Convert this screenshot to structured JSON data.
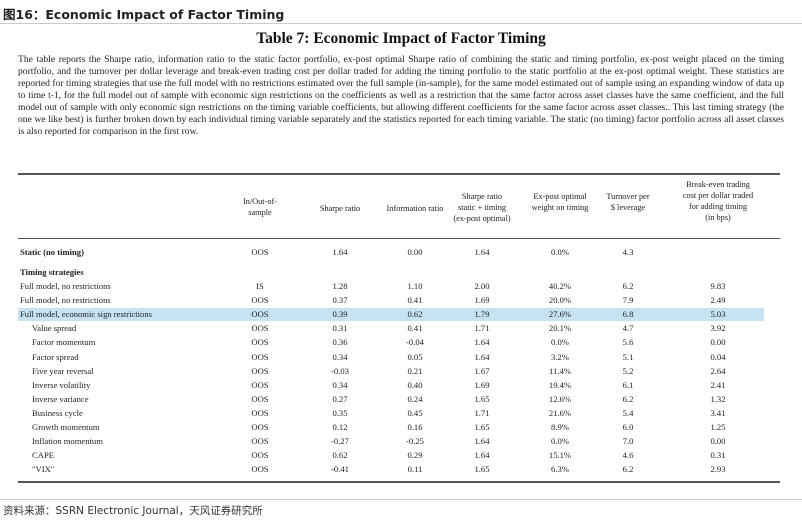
{
  "figure_label": "图16：Economic Impact of Factor Timing",
  "table_title": "Table 7:  Economic Impact of Factor Timing",
  "description": "The table reports the Sharpe ratio, information ratio to the static factor portfolio, ex-post optimal Sharpe ratio of combining the static and timing portfolio, ex-post weight placed on the timing portfolio, and the turnover per dollar leverage and break-even trading cost per dollar traded for adding the timing portfolio to the static portfolio at the ex-post optimal weight. These statistics are reported for timing strategies that use the full model with no restrictions estimated over the full sample (in-sample), for the same model estimated out of sample using an expanding window of data up to time t-1, for the full model out of sample with economic sign restrictions on the coefficients as well as a restriction that the same factor across asset classes have the same coefficient, and the full model out of sample with only economic sign restrictions on the timing variable coefficients, but allowing different coefficients for the same factor across asset classes..  This last timing strategy (the one we like best) is further broken down by each individual timing variable separately and the statistics reported for each timing variable. The static (no timing) factor portfolio across all asset classes is also reported for comparison in the first row.",
  "headers": {
    "sample": "In/Out-of-\nsample",
    "sharpe": "Sharpe ratio",
    "info": "Information ratio",
    "sharpe_static": "Sharpe ratio\nstatic + timing\n(ex-post optimal)",
    "weight": "Ex-post optimal\nweight on timing",
    "turnover": "Turnover per\n$ leverage",
    "breakeven": "Break-even trading\ncost per dollar traded\nfor adding timing\n(in bps)"
  },
  "static_row": {
    "label": "Static (no timing)",
    "values": [
      "OOS",
      "1.64",
      "0.00",
      "1.64",
      "0.0%",
      "4.3",
      ""
    ]
  },
  "section_label": "Timing strategies",
  "rows": [
    {
      "label": "Full model, no restrictions",
      "values": [
        "IS",
        "1.28",
        "1.10",
        "2.00",
        "40.2%",
        "6.2",
        "9.83"
      ]
    },
    {
      "label": "Full model, no restrictions",
      "values": [
        "OOS",
        "0.37",
        "0.41",
        "1.69",
        "20.0%",
        "7.9",
        "2.49"
      ]
    },
    {
      "label": "Full model, economic sign restrictions",
      "values": [
        "OOS",
        "0.39",
        "0.62",
        "1.79",
        "27.6%",
        "6.8",
        "5.03"
      ]
    },
    {
      "label": "Value spread",
      "values": [
        "OOS",
        "0.31",
        "0.41",
        "1.71",
        "20.1%",
        "4.7",
        "3.92"
      ]
    },
    {
      "label": "Factor momentum",
      "values": [
        "OOS",
        "0.36",
        "-0.04",
        "1.64",
        "0.0%",
        "5.6",
        "0.00"
      ]
    },
    {
      "label": "Factor spread",
      "values": [
        "OOS",
        "0.34",
        "0.05",
        "1.64",
        "3.2%",
        "5.1",
        "0.04"
      ]
    },
    {
      "label": "Five year reversal",
      "values": [
        "OOS",
        "-0.03",
        "0.21",
        "1.67",
        "11.4%",
        "5.2",
        "2.64"
      ]
    },
    {
      "label": "Inverse volatility",
      "values": [
        "OOS",
        "0.34",
        "0.40",
        "1.69",
        "19.4%",
        "6.1",
        "2.41"
      ]
    },
    {
      "label": "Inverse variance",
      "values": [
        "OOS",
        "0.27",
        "0.24",
        "1.65",
        "12.6%",
        "6.2",
        "1.32"
      ]
    },
    {
      "label": "Business cycle",
      "values": [
        "OOS",
        "0.35",
        "0.45",
        "1.71",
        "21.6%",
        "5.4",
        "3.41"
      ]
    },
    {
      "label": "Growth momentum",
      "values": [
        "OOS",
        "0.12",
        "0.16",
        "1.65",
        "8.9%",
        "6.0",
        "1.25"
      ]
    },
    {
      "label": "Inflation momentum",
      "values": [
        "OOS",
        "-0.27",
        "-0.25",
        "1.64",
        "0.0%",
        "7.0",
        "0.00"
      ]
    },
    {
      "label": "CAPE",
      "values": [
        "OOS",
        "0.62",
        "0.29",
        "1.64",
        "15.1%",
        "4.6",
        "0.31"
      ]
    },
    {
      "label": "\"VIX\"",
      "values": [
        "OOS",
        "-0.41",
        "0.11",
        "1.65",
        "6.3%",
        "6.2",
        "2.93"
      ]
    }
  ],
  "highlight_row_index": 2,
  "source": "资料来源：SSRN Electronic Journal，天风证券研究所"
}
